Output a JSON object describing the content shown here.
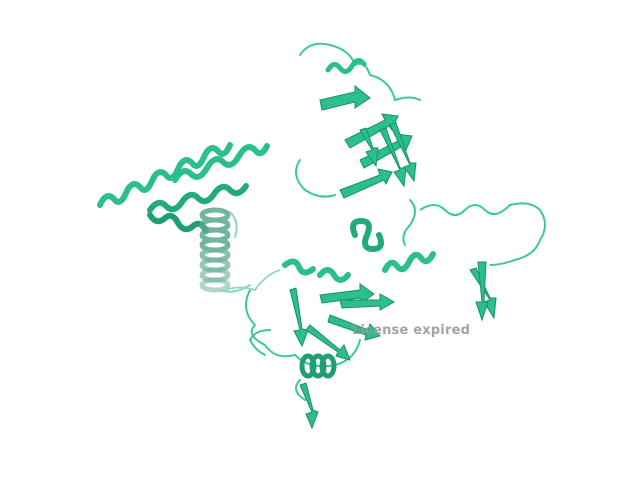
{
  "viewer": {
    "watermark_text": "License expired"
  },
  "colors": {
    "background": "#ffffff",
    "ribbon": "#2bbf8e",
    "ribbon_light": "#5fd9b0",
    "ribbon_dark": "#1a8f68",
    "watermark": "#9a9a9a"
  }
}
